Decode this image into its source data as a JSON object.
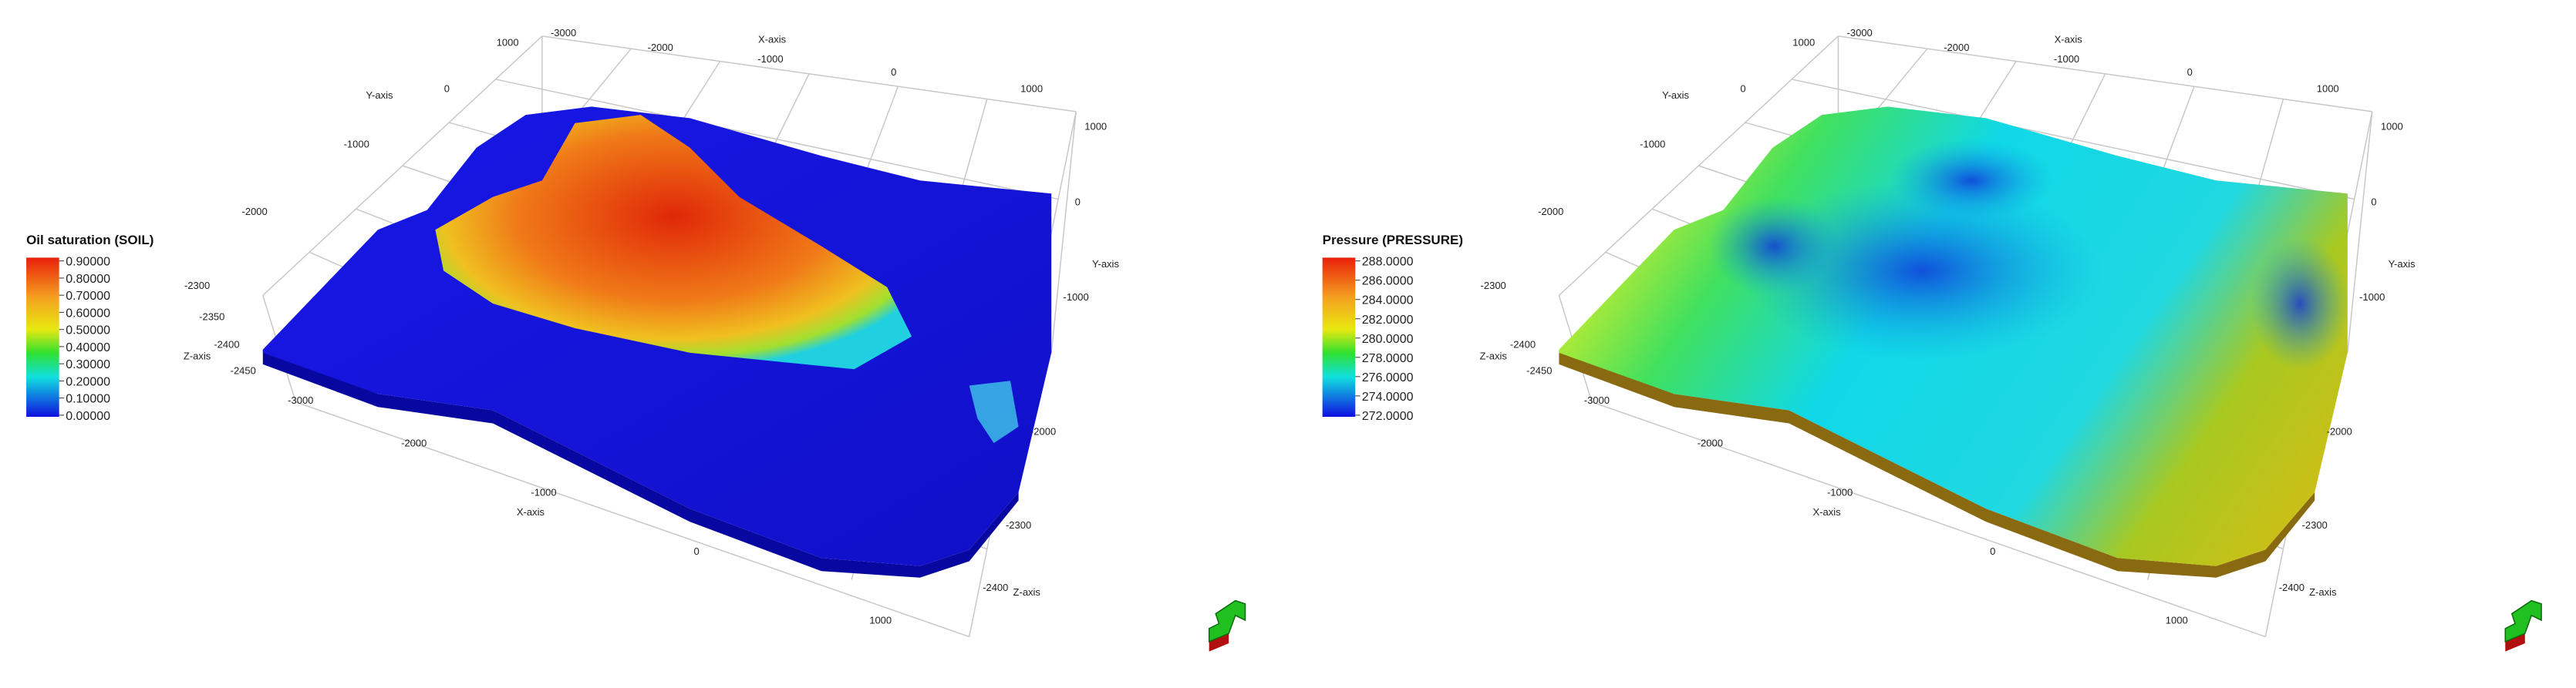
{
  "views": [
    {
      "legend": {
        "title": "Oil saturation (SOIL)",
        "labels": [
          "0.90000",
          "0.80000",
          "0.70000",
          "0.60000",
          "0.50000",
          "0.40000",
          "0.30000",
          "0.20000",
          "0.10000",
          "0.00000"
        ]
      },
      "axis_labels": [
        "-3000",
        "-2000",
        "X-axis",
        "-1000",
        "0",
        "1000",
        "1000",
        "Y-axis",
        "0",
        "-1000",
        "-2000",
        "-2300",
        "-2350",
        "-2400",
        "Z-axis",
        "-2450",
        "1000",
        "0",
        "Y-axis",
        "-1000",
        "-2000",
        "-2300",
        "-2400",
        "Z-axis",
        "-3000",
        "-2000",
        "-1000",
        "X-axis",
        "0",
        "1000"
      ]
    },
    {
      "legend": {
        "title": "Pressure (PRESSURE)",
        "labels": [
          "288.0000",
          "286.0000",
          "284.0000",
          "282.0000",
          "280.0000",
          "278.0000",
          "276.0000",
          "274.0000",
          "272.0000"
        ]
      },
      "axis_labels": [
        "-3000",
        "-2000",
        "X-axis",
        "-1000",
        "0",
        "1000",
        "1000",
        "Y-axis",
        "0",
        "-1000",
        "-2000",
        "-2300",
        "-2400",
        "Z-axis",
        "-2450",
        "1000",
        "0",
        "Y-axis",
        "-1000",
        "-2000",
        "-2300",
        "-2400",
        "Z-axis",
        "-3000",
        "-2000",
        "-1000",
        "X-axis",
        "0",
        "1000"
      ]
    }
  ]
}
